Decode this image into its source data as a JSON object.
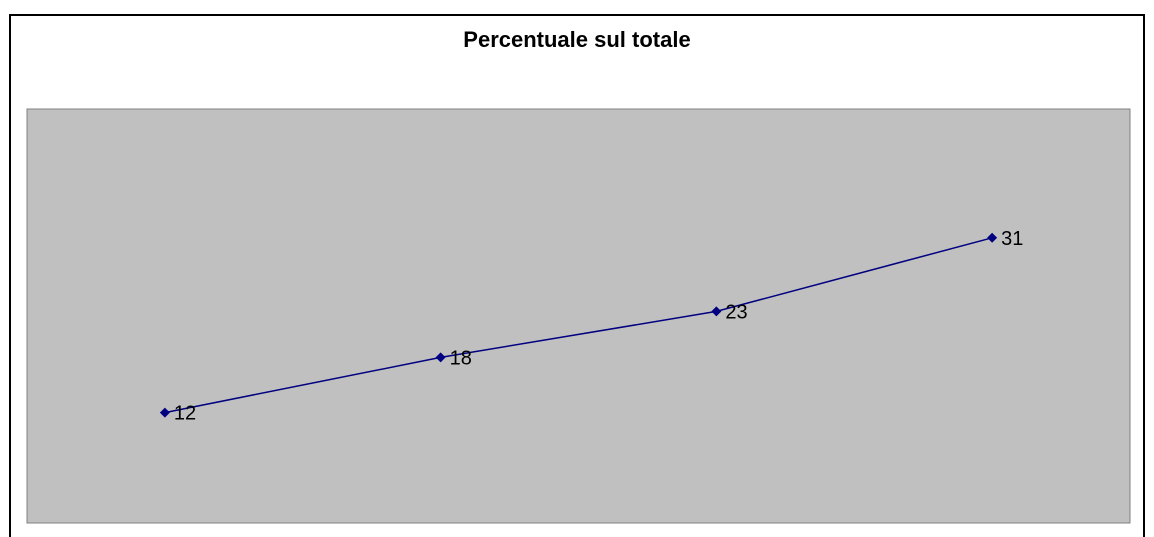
{
  "chart_data": {
    "type": "line",
    "title": "Percentuale sul totale",
    "xlabel": "",
    "ylabel": "",
    "categories": [
      "",
      "",
      "",
      ""
    ],
    "series": [
      {
        "values": [
          12,
          18,
          23,
          31
        ],
        "color": "#000080"
      }
    ],
    "ylim": [
      0,
      45
    ],
    "plot_background": "#c0c0c0",
    "grid": false,
    "legend": "none",
    "data_labels": true
  }
}
